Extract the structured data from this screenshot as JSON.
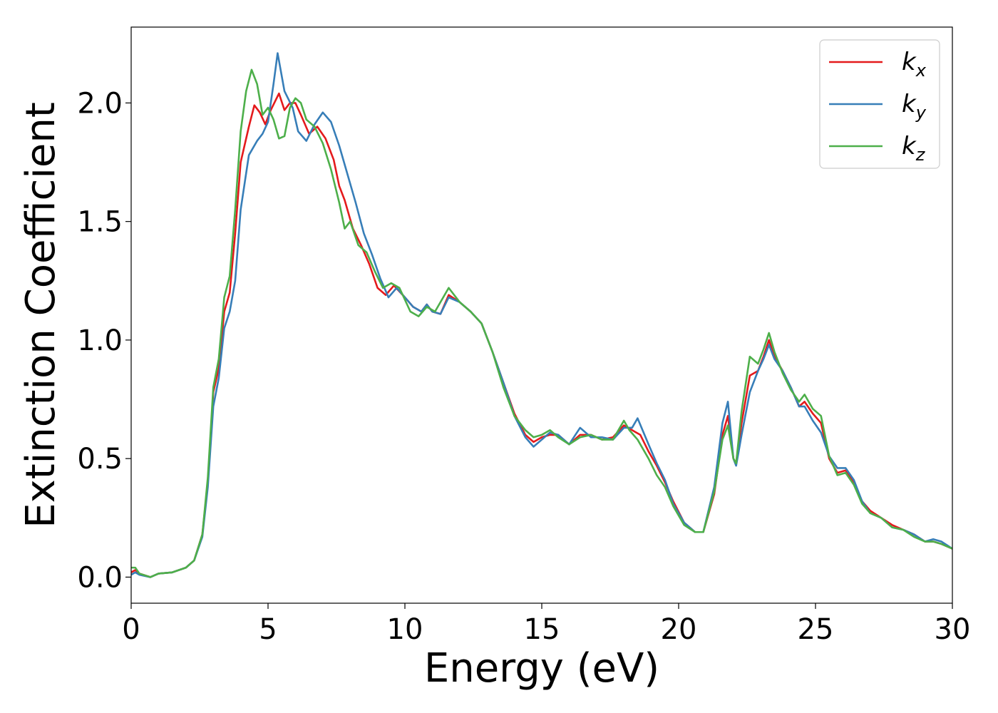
{
  "chart_data": {
    "type": "line",
    "xlabel": "Energy (eV)",
    "ylabel": "Extinction Coefficient",
    "xlim": [
      0,
      30
    ],
    "ylim": [
      -0.11,
      2.32
    ],
    "xticks": [
      0,
      5,
      10,
      15,
      20,
      25,
      30
    ],
    "xtick_labels": [
      "0",
      "5",
      "10",
      "15",
      "20",
      "25",
      "30"
    ],
    "yticks": [
      0.0,
      0.5,
      1.0,
      1.5,
      2.0
    ],
    "ytick_labels": [
      "0.0",
      "0.5",
      "1.0",
      "1.5",
      "2.0"
    ],
    "grid": false,
    "legend_position": "top-right",
    "series": [
      {
        "name_base": "k",
        "name_sub": "x",
        "color": "#e41a1c",
        "points": [
          [
            0,
            0.02
          ],
          [
            0.15,
            0.03
          ],
          [
            0.3,
            0.015
          ],
          [
            0.7,
            0.0
          ],
          [
            1.0,
            0.015
          ],
          [
            1.5,
            0.02
          ],
          [
            2.0,
            0.04
          ],
          [
            2.3,
            0.07
          ],
          [
            2.6,
            0.18
          ],
          [
            2.8,
            0.4
          ],
          [
            3.0,
            0.78
          ],
          [
            3.2,
            0.88
          ],
          [
            3.4,
            1.12
          ],
          [
            3.6,
            1.2
          ],
          [
            3.8,
            1.45
          ],
          [
            4.0,
            1.75
          ],
          [
            4.3,
            1.9
          ],
          [
            4.5,
            1.99
          ],
          [
            4.7,
            1.96
          ],
          [
            4.9,
            1.91
          ],
          [
            5.1,
            1.97
          ],
          [
            5.4,
            2.04
          ],
          [
            5.6,
            1.97
          ],
          [
            5.8,
            2.0
          ],
          [
            6.0,
            2.0
          ],
          [
            6.2,
            1.95
          ],
          [
            6.5,
            1.87
          ],
          [
            6.8,
            1.9
          ],
          [
            7.1,
            1.85
          ],
          [
            7.4,
            1.76
          ],
          [
            7.6,
            1.65
          ],
          [
            7.8,
            1.59
          ],
          [
            8.1,
            1.47
          ],
          [
            8.4,
            1.4
          ],
          [
            8.7,
            1.32
          ],
          [
            9.0,
            1.22
          ],
          [
            9.3,
            1.19
          ],
          [
            9.6,
            1.23
          ],
          [
            10.0,
            1.18
          ],
          [
            10.3,
            1.14
          ],
          [
            10.6,
            1.12
          ],
          [
            10.8,
            1.15
          ],
          [
            11.0,
            1.12
          ],
          [
            11.3,
            1.11
          ],
          [
            11.6,
            1.19
          ],
          [
            12.0,
            1.16
          ],
          [
            12.4,
            1.12
          ],
          [
            12.8,
            1.07
          ],
          [
            13.2,
            0.95
          ],
          [
            13.6,
            0.82
          ],
          [
            14.0,
            0.69
          ],
          [
            14.4,
            0.6
          ],
          [
            14.7,
            0.57
          ],
          [
            15.0,
            0.59
          ],
          [
            15.3,
            0.6
          ],
          [
            15.6,
            0.6
          ],
          [
            16.0,
            0.56
          ],
          [
            16.4,
            0.6
          ],
          [
            16.8,
            0.6
          ],
          [
            17.2,
            0.58
          ],
          [
            17.6,
            0.59
          ],
          [
            18.0,
            0.64
          ],
          [
            18.3,
            0.62
          ],
          [
            18.6,
            0.6
          ],
          [
            18.9,
            0.53
          ],
          [
            19.2,
            0.47
          ],
          [
            19.5,
            0.4
          ],
          [
            19.8,
            0.32
          ],
          [
            20.2,
            0.23
          ],
          [
            20.6,
            0.19
          ],
          [
            20.9,
            0.19
          ],
          [
            21.3,
            0.35
          ],
          [
            21.6,
            0.6
          ],
          [
            21.8,
            0.68
          ],
          [
            22.0,
            0.5
          ],
          [
            22.1,
            0.48
          ],
          [
            22.3,
            0.65
          ],
          [
            22.6,
            0.85
          ],
          [
            22.9,
            0.87
          ],
          [
            23.1,
            0.93
          ],
          [
            23.3,
            1.0
          ],
          [
            23.5,
            0.93
          ],
          [
            23.8,
            0.87
          ],
          [
            24.1,
            0.8
          ],
          [
            24.4,
            0.72
          ],
          [
            24.6,
            0.74
          ],
          [
            24.9,
            0.69
          ],
          [
            25.2,
            0.65
          ],
          [
            25.5,
            0.5
          ],
          [
            25.8,
            0.44
          ],
          [
            26.1,
            0.45
          ],
          [
            26.4,
            0.4
          ],
          [
            26.7,
            0.32
          ],
          [
            27.0,
            0.28
          ],
          [
            27.4,
            0.25
          ],
          [
            27.8,
            0.22
          ],
          [
            28.2,
            0.2
          ],
          [
            28.6,
            0.18
          ],
          [
            29.0,
            0.15
          ],
          [
            29.3,
            0.15
          ],
          [
            29.6,
            0.14
          ],
          [
            30.0,
            0.12
          ]
        ]
      },
      {
        "name_base": "k",
        "name_sub": "y",
        "color": "#377eb8",
        "points": [
          [
            0,
            0.01
          ],
          [
            0.15,
            0.02
          ],
          [
            0.3,
            0.01
          ],
          [
            0.7,
            0.0
          ],
          [
            1.0,
            0.015
          ],
          [
            1.5,
            0.02
          ],
          [
            2.0,
            0.04
          ],
          [
            2.3,
            0.07
          ],
          [
            2.6,
            0.17
          ],
          [
            2.8,
            0.38
          ],
          [
            3.0,
            0.72
          ],
          [
            3.2,
            0.84
          ],
          [
            3.4,
            1.05
          ],
          [
            3.6,
            1.12
          ],
          [
            3.8,
            1.25
          ],
          [
            4.0,
            1.55
          ],
          [
            4.3,
            1.78
          ],
          [
            4.6,
            1.84
          ],
          [
            4.8,
            1.87
          ],
          [
            5.0,
            1.92
          ],
          [
            5.2,
            2.08
          ],
          [
            5.35,
            2.21
          ],
          [
            5.6,
            2.05
          ],
          [
            5.9,
            1.98
          ],
          [
            6.1,
            1.88
          ],
          [
            6.4,
            1.84
          ],
          [
            6.7,
            1.91
          ],
          [
            7.0,
            1.96
          ],
          [
            7.3,
            1.92
          ],
          [
            7.6,
            1.82
          ],
          [
            7.9,
            1.7
          ],
          [
            8.2,
            1.58
          ],
          [
            8.5,
            1.45
          ],
          [
            8.8,
            1.36
          ],
          [
            9.1,
            1.26
          ],
          [
            9.4,
            1.18
          ],
          [
            9.7,
            1.22
          ],
          [
            10.0,
            1.18
          ],
          [
            10.3,
            1.14
          ],
          [
            10.6,
            1.12
          ],
          [
            10.8,
            1.15
          ],
          [
            11.0,
            1.12
          ],
          [
            11.3,
            1.11
          ],
          [
            11.6,
            1.18
          ],
          [
            12.0,
            1.16
          ],
          [
            12.4,
            1.12
          ],
          [
            12.8,
            1.07
          ],
          [
            13.2,
            0.95
          ],
          [
            13.6,
            0.82
          ],
          [
            14.0,
            0.68
          ],
          [
            14.4,
            0.59
          ],
          [
            14.7,
            0.55
          ],
          [
            15.0,
            0.58
          ],
          [
            15.3,
            0.61
          ],
          [
            15.6,
            0.6
          ],
          [
            16.0,
            0.56
          ],
          [
            16.4,
            0.63
          ],
          [
            16.8,
            0.59
          ],
          [
            17.2,
            0.59
          ],
          [
            17.6,
            0.58
          ],
          [
            18.0,
            0.63
          ],
          [
            18.3,
            0.63
          ],
          [
            18.5,
            0.67
          ],
          [
            18.9,
            0.56
          ],
          [
            19.2,
            0.48
          ],
          [
            19.5,
            0.41
          ],
          [
            19.8,
            0.31
          ],
          [
            20.2,
            0.23
          ],
          [
            20.6,
            0.19
          ],
          [
            20.9,
            0.19
          ],
          [
            21.3,
            0.38
          ],
          [
            21.6,
            0.65
          ],
          [
            21.8,
            0.74
          ],
          [
            22.0,
            0.5
          ],
          [
            22.1,
            0.47
          ],
          [
            22.3,
            0.6
          ],
          [
            22.6,
            0.78
          ],
          [
            22.9,
            0.87
          ],
          [
            23.1,
            0.92
          ],
          [
            23.3,
            0.98
          ],
          [
            23.5,
            0.92
          ],
          [
            23.8,
            0.87
          ],
          [
            24.1,
            0.8
          ],
          [
            24.4,
            0.72
          ],
          [
            24.6,
            0.72
          ],
          [
            24.9,
            0.66
          ],
          [
            25.2,
            0.61
          ],
          [
            25.5,
            0.51
          ],
          [
            25.8,
            0.46
          ],
          [
            26.1,
            0.46
          ],
          [
            26.4,
            0.41
          ],
          [
            26.7,
            0.32
          ],
          [
            27.0,
            0.27
          ],
          [
            27.4,
            0.25
          ],
          [
            27.8,
            0.21
          ],
          [
            28.2,
            0.2
          ],
          [
            28.6,
            0.18
          ],
          [
            29.0,
            0.15
          ],
          [
            29.3,
            0.16
          ],
          [
            29.6,
            0.15
          ],
          [
            30.0,
            0.12
          ]
        ]
      },
      {
        "name_base": "k",
        "name_sub": "z",
        "color": "#4daf4a",
        "points": [
          [
            0,
            0.04
          ],
          [
            0.15,
            0.04
          ],
          [
            0.3,
            0.015
          ],
          [
            0.7,
            0.0
          ],
          [
            1.0,
            0.015
          ],
          [
            1.5,
            0.02
          ],
          [
            2.0,
            0.04
          ],
          [
            2.3,
            0.07
          ],
          [
            2.6,
            0.18
          ],
          [
            2.8,
            0.42
          ],
          [
            3.0,
            0.8
          ],
          [
            3.2,
            0.92
          ],
          [
            3.4,
            1.18
          ],
          [
            3.6,
            1.27
          ],
          [
            3.8,
            1.55
          ],
          [
            4.0,
            1.88
          ],
          [
            4.2,
            2.05
          ],
          [
            4.4,
            2.14
          ],
          [
            4.6,
            2.08
          ],
          [
            4.8,
            1.95
          ],
          [
            5.0,
            1.98
          ],
          [
            5.2,
            1.93
          ],
          [
            5.4,
            1.85
          ],
          [
            5.6,
            1.86
          ],
          [
            5.8,
            1.98
          ],
          [
            6.0,
            2.02
          ],
          [
            6.2,
            2.0
          ],
          [
            6.4,
            1.93
          ],
          [
            6.7,
            1.9
          ],
          [
            7.0,
            1.83
          ],
          [
            7.3,
            1.72
          ],
          [
            7.6,
            1.58
          ],
          [
            7.8,
            1.47
          ],
          [
            8.0,
            1.5
          ],
          [
            8.3,
            1.4
          ],
          [
            8.6,
            1.37
          ],
          [
            8.9,
            1.29
          ],
          [
            9.2,
            1.22
          ],
          [
            9.5,
            1.24
          ],
          [
            9.8,
            1.22
          ],
          [
            10.2,
            1.12
          ],
          [
            10.5,
            1.1
          ],
          [
            10.8,
            1.14
          ],
          [
            11.1,
            1.12
          ],
          [
            11.6,
            1.22
          ],
          [
            12.0,
            1.16
          ],
          [
            12.4,
            1.12
          ],
          [
            12.8,
            1.07
          ],
          [
            13.2,
            0.95
          ],
          [
            13.6,
            0.8
          ],
          [
            14.0,
            0.68
          ],
          [
            14.4,
            0.62
          ],
          [
            14.7,
            0.59
          ],
          [
            15.0,
            0.6
          ],
          [
            15.3,
            0.62
          ],
          [
            15.6,
            0.59
          ],
          [
            16.0,
            0.56
          ],
          [
            16.4,
            0.59
          ],
          [
            16.8,
            0.6
          ],
          [
            17.2,
            0.58
          ],
          [
            17.6,
            0.58
          ],
          [
            18.0,
            0.66
          ],
          [
            18.2,
            0.62
          ],
          [
            18.5,
            0.58
          ],
          [
            18.9,
            0.5
          ],
          [
            19.2,
            0.43
          ],
          [
            19.5,
            0.38
          ],
          [
            19.8,
            0.3
          ],
          [
            20.2,
            0.22
          ],
          [
            20.6,
            0.19
          ],
          [
            20.9,
            0.19
          ],
          [
            21.3,
            0.36
          ],
          [
            21.6,
            0.58
          ],
          [
            21.8,
            0.64
          ],
          [
            22.0,
            0.5
          ],
          [
            22.1,
            0.48
          ],
          [
            22.3,
            0.7
          ],
          [
            22.6,
            0.93
          ],
          [
            22.9,
            0.9
          ],
          [
            23.1,
            0.96
          ],
          [
            23.3,
            1.03
          ],
          [
            23.5,
            0.95
          ],
          [
            23.8,
            0.86
          ],
          [
            24.1,
            0.79
          ],
          [
            24.4,
            0.74
          ],
          [
            24.6,
            0.77
          ],
          [
            24.9,
            0.71
          ],
          [
            25.2,
            0.68
          ],
          [
            25.5,
            0.51
          ],
          [
            25.8,
            0.43
          ],
          [
            26.1,
            0.44
          ],
          [
            26.4,
            0.39
          ],
          [
            26.7,
            0.31
          ],
          [
            27.0,
            0.27
          ],
          [
            27.4,
            0.25
          ],
          [
            27.8,
            0.21
          ],
          [
            28.2,
            0.2
          ],
          [
            28.6,
            0.17
          ],
          [
            29.0,
            0.15
          ],
          [
            29.3,
            0.15
          ],
          [
            29.6,
            0.14
          ],
          [
            30.0,
            0.12
          ]
        ]
      }
    ]
  }
}
